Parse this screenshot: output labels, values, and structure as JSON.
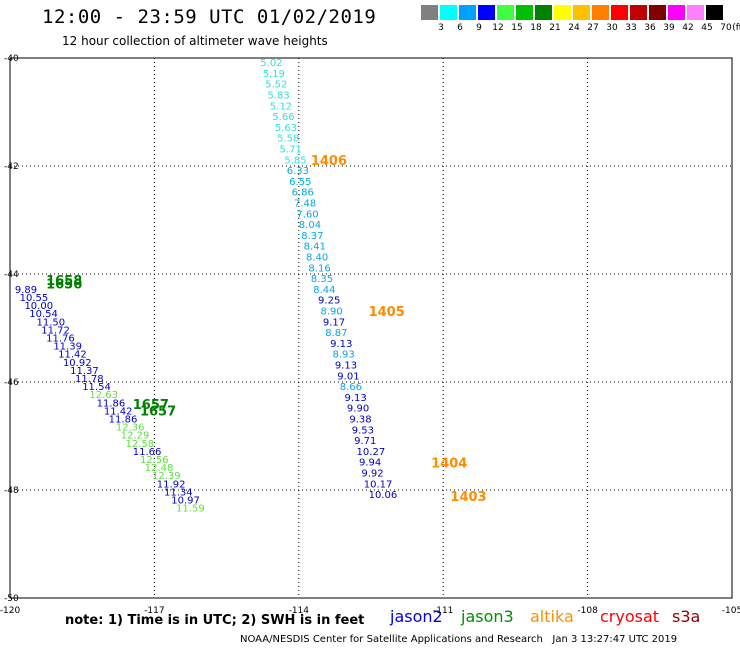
{
  "title": "12:00 - 23:59 UTC 01/02/2019",
  "subtitle": "12 hour collection of altimeter wave heights",
  "legend": {
    "unit": "(ft)",
    "swatches": [
      {
        "label": "3",
        "color": "#808080"
      },
      {
        "label": "6",
        "color": "#00ffff"
      },
      {
        "label": "9",
        "color": "#00a0ff"
      },
      {
        "label": "12",
        "color": "#0000ff"
      },
      {
        "label": "15",
        "color": "#40ff40"
      },
      {
        "label": "18",
        "color": "#00c000"
      },
      {
        "label": "21",
        "color": "#008000"
      },
      {
        "label": "24",
        "color": "#ffff00"
      },
      {
        "label": "27",
        "color": "#ffc000"
      },
      {
        "label": "30",
        "color": "#ff8000"
      },
      {
        "label": "33",
        "color": "#ff0000"
      },
      {
        "label": "36",
        "color": "#c00000"
      },
      {
        "label": "39",
        "color": "#800000"
      },
      {
        "label": "42",
        "color": "#ff00ff"
      },
      {
        "label": "45",
        "color": "#ff80ff"
      },
      {
        "label": "70",
        "color": "#000000"
      }
    ]
  },
  "map": {
    "lon_range": [
      -120,
      -105
    ],
    "lat_range": [
      -50,
      -40
    ],
    "lon_ticks": [
      "-120",
      "-117",
      "-114",
      "-111",
      "-108",
      "-105"
    ],
    "lat_ticks": [
      "-40",
      "-42",
      "-44",
      "-46",
      "-48",
      "-50"
    ],
    "lon_tick_values": [
      -120,
      -117,
      -114,
      -111,
      -108,
      -105
    ],
    "lat_tick_values": [
      -40,
      -42,
      -44,
      -46,
      -48,
      -50
    ],
    "track_east": {
      "points": [
        {
          "lon": -114.8,
          "lat": -40.15,
          "swh": "5.02",
          "color": "#30e0e0"
        },
        {
          "lon": -114.75,
          "lat": -40.35,
          "swh": "5.19",
          "color": "#30e0e0"
        },
        {
          "lon": -114.7,
          "lat": -40.55,
          "swh": "5.52",
          "color": "#30e0e0"
        },
        {
          "lon": -114.65,
          "lat": -40.75,
          "swh": "5.83",
          "color": "#30e0e0"
        },
        {
          "lon": -114.6,
          "lat": -40.95,
          "swh": "5.12",
          "color": "#30e0e0"
        },
        {
          "lon": -114.55,
          "lat": -41.15,
          "swh": "5.66",
          "color": "#30e0e0"
        },
        {
          "lon": -114.5,
          "lat": -41.35,
          "swh": "5.63",
          "color": "#30e0e0"
        },
        {
          "lon": -114.45,
          "lat": -41.55,
          "swh": "5.58",
          "color": "#30e0e0"
        },
        {
          "lon": -114.4,
          "lat": -41.75,
          "swh": "5.71",
          "color": "#30e0e0"
        },
        {
          "lon": -114.3,
          "lat": -41.95,
          "swh": "5.85",
          "color": "#30e0e0"
        },
        {
          "lon": -114.25,
          "lat": -42.15,
          "swh": "6.33",
          "color": "#00a8e8"
        },
        {
          "lon": -114.2,
          "lat": -42.35,
          "swh": "6.55",
          "color": "#00a8e8"
        },
        {
          "lon": -114.15,
          "lat": -42.55,
          "swh": "6.86",
          "color": "#00a8e8"
        },
        {
          "lon": -114.1,
          "lat": -42.75,
          "swh": "7.48",
          "color": "#00a8e8"
        },
        {
          "lon": -114.05,
          "lat": -42.95,
          "swh": "7.60",
          "color": "#00a8e8"
        },
        {
          "lon": -114.0,
          "lat": -43.15,
          "swh": "8.04",
          "color": "#00a8e8"
        },
        {
          "lon": -113.95,
          "lat": -43.35,
          "swh": "8.37",
          "color": "#00a8e8"
        },
        {
          "lon": -113.9,
          "lat": -43.55,
          "swh": "8.41",
          "color": "#00a8e8"
        },
        {
          "lon": -113.85,
          "lat": -43.75,
          "swh": "8.40",
          "color": "#00a8e8"
        },
        {
          "lon": -113.8,
          "lat": -43.95,
          "swh": "8.16",
          "color": "#00a8e8"
        },
        {
          "lon": -113.75,
          "lat": -44.15,
          "swh": "8.35",
          "color": "#00a8e8"
        },
        {
          "lon": -113.7,
          "lat": -44.35,
          "swh": "8.44",
          "color": "#00a8e8"
        },
        {
          "lon": -113.6,
          "lat": -44.55,
          "swh": "9.25",
          "color": "#0000c8"
        },
        {
          "lon": -113.55,
          "lat": -44.75,
          "swh": "8.90",
          "color": "#00a8e8"
        },
        {
          "lon": -113.5,
          "lat": -44.95,
          "swh": "9.17",
          "color": "#0000c8"
        },
        {
          "lon": -113.45,
          "lat": -45.15,
          "swh": "8.87",
          "color": "#00a8e8"
        },
        {
          "lon": -113.35,
          "lat": -45.35,
          "swh": "9.13",
          "color": "#0000c8"
        },
        {
          "lon": -113.3,
          "lat": -45.55,
          "swh": "8.93",
          "color": "#00a8e8"
        },
        {
          "lon": -113.25,
          "lat": -45.75,
          "swh": "9.13",
          "color": "#0000c8"
        },
        {
          "lon": -113.2,
          "lat": -45.95,
          "swh": "9.01",
          "color": "#0000c8"
        },
        {
          "lon": -113.15,
          "lat": -46.15,
          "swh": "8.66",
          "color": "#00a8e8"
        },
        {
          "lon": -113.05,
          "lat": -46.35,
          "swh": "9.13",
          "color": "#0000c8"
        },
        {
          "lon": -113.0,
          "lat": -46.55,
          "swh": "9.90",
          "color": "#0000c8"
        },
        {
          "lon": -112.95,
          "lat": -46.75,
          "swh": "9.38",
          "color": "#0000c8"
        },
        {
          "lon": -112.9,
          "lat": -46.95,
          "swh": "9.53",
          "color": "#0000c8"
        },
        {
          "lon": -112.85,
          "lat": -47.15,
          "swh": "9.71",
          "color": "#0000c8"
        },
        {
          "lon": -112.8,
          "lat": -47.35,
          "swh": "10.27",
          "color": "#0000c8"
        },
        {
          "lon": -112.75,
          "lat": -47.55,
          "swh": "9.94",
          "color": "#0000c8"
        },
        {
          "lon": -112.7,
          "lat": -47.75,
          "swh": "9.92",
          "color": "#0000c8"
        },
        {
          "lon": -112.65,
          "lat": -47.95,
          "swh": "10.17",
          "color": "#0000c8"
        },
        {
          "lon": -112.55,
          "lat": -48.15,
          "swh": "10.06",
          "color": "#0000c8"
        }
      ],
      "time_labels": [
        {
          "lon": -113.75,
          "lat": -41.98,
          "text": "1406",
          "color": "#ff8c00"
        },
        {
          "lon": -112.55,
          "lat": -44.78,
          "text": "1405",
          "color": "#ff8c00"
        },
        {
          "lon": -111.25,
          "lat": -47.58,
          "text": "1404",
          "color": "#ff8c00"
        },
        {
          "lon": -110.85,
          "lat": -48.2,
          "text": "1403",
          "color": "#ff8c00"
        }
      ]
    },
    "track_west": {
      "points": [
        {
          "lon": -119.9,
          "lat": -44.35,
          "swh": "9.89",
          "color": "#0000c8"
        },
        {
          "lon": -119.8,
          "lat": -44.5,
          "swh": "10.55",
          "color": "#0000c8"
        },
        {
          "lon": -119.7,
          "lat": -44.65,
          "swh": "10.00",
          "color": "#0000c8"
        },
        {
          "lon": -119.6,
          "lat": -44.8,
          "swh": "10.54",
          "color": "#0000c8"
        },
        {
          "lon": -119.45,
          "lat": -44.95,
          "swh": "11.50",
          "color": "#0000c8"
        },
        {
          "lon": -119.35,
          "lat": -45.1,
          "swh": "11.72",
          "color": "#0000c8"
        },
        {
          "lon": -119.25,
          "lat": -45.25,
          "swh": "11.76",
          "color": "#0000c8"
        },
        {
          "lon": -119.1,
          "lat": -45.4,
          "swh": "11.39",
          "color": "#0000c8"
        },
        {
          "lon": -119.0,
          "lat": -45.55,
          "swh": "11.42",
          "color": "#0000c8"
        },
        {
          "lon": -118.9,
          "lat": -45.7,
          "swh": "10.92",
          "color": "#0000c8"
        },
        {
          "lon": -118.75,
          "lat": -45.85,
          "swh": "11.37",
          "color": "#0000c8"
        },
        {
          "lon": -118.65,
          "lat": -46.0,
          "swh": "11.78",
          "color": "#0000c8"
        },
        {
          "lon": -118.5,
          "lat": -46.15,
          "swh": "11.54",
          "color": "#0000c8"
        },
        {
          "lon": -118.35,
          "lat": -46.3,
          "swh": "12.63",
          "color": "#60e040"
        },
        {
          "lon": -118.2,
          "lat": -46.45,
          "swh": "11.86",
          "color": "#0000c8"
        },
        {
          "lon": -118.05,
          "lat": -46.6,
          "swh": "11.42",
          "color": "#0000c8"
        },
        {
          "lon": -117.95,
          "lat": -46.75,
          "swh": "11.86",
          "color": "#0000c8"
        },
        {
          "lon": -117.8,
          "lat": -46.9,
          "swh": "12.36",
          "color": "#60e040"
        },
        {
          "lon": -117.7,
          "lat": -47.05,
          "swh": "12.29",
          "color": "#60e040"
        },
        {
          "lon": -117.6,
          "lat": -47.2,
          "swh": "12.58",
          "color": "#60e040"
        },
        {
          "lon": -117.45,
          "lat": -47.35,
          "swh": "11.66",
          "color": "#0000c8"
        },
        {
          "lon": -117.3,
          "lat": -47.5,
          "swh": "12.56",
          "color": "#60e040"
        },
        {
          "lon": -117.2,
          "lat": -47.65,
          "swh": "12.48",
          "color": "#60e040"
        },
        {
          "lon": -117.05,
          "lat": -47.8,
          "swh": "12.39",
          "color": "#60e040"
        },
        {
          "lon": -116.95,
          "lat": -47.95,
          "swh": "11.92",
          "color": "#0000c8"
        },
        {
          "lon": -116.8,
          "lat": -48.1,
          "swh": "11.34",
          "color": "#0000c8"
        },
        {
          "lon": -116.65,
          "lat": -48.25,
          "swh": "10.97",
          "color": "#0000c8"
        },
        {
          "lon": -116.55,
          "lat": -48.4,
          "swh": "11.59",
          "color": "#60e040"
        }
      ],
      "time_labels": [
        {
          "lon": -119.25,
          "lat": -44.2,
          "text": "1658",
          "color": "#008000"
        },
        {
          "lon": -119.25,
          "lat": -44.27,
          "text": "1656",
          "color": "#008000"
        },
        {
          "lon": -117.45,
          "lat": -46.5,
          "text": "1657",
          "color": "#008000"
        },
        {
          "lon": -117.3,
          "lat": -46.62,
          "text": "1657",
          "color": "#008000"
        }
      ]
    }
  },
  "footer": {
    "note": "note: 1) Time is in UTC; 2) SWH is in feet",
    "satellites": [
      {
        "name": "jason2",
        "color": "#0000e0"
      },
      {
        "name": "jason3",
        "color": "#009000"
      },
      {
        "name": "altika",
        "color": "#ff9000"
      },
      {
        "name": "cryosat",
        "color": "#ff0000"
      },
      {
        "name": "s3a",
        "color": "#900000"
      }
    ],
    "credit": "NOAA/NESDIS Center for Satellite Applications and Research",
    "generated": "Jan  3 13:27:47 UTC 2019"
  }
}
